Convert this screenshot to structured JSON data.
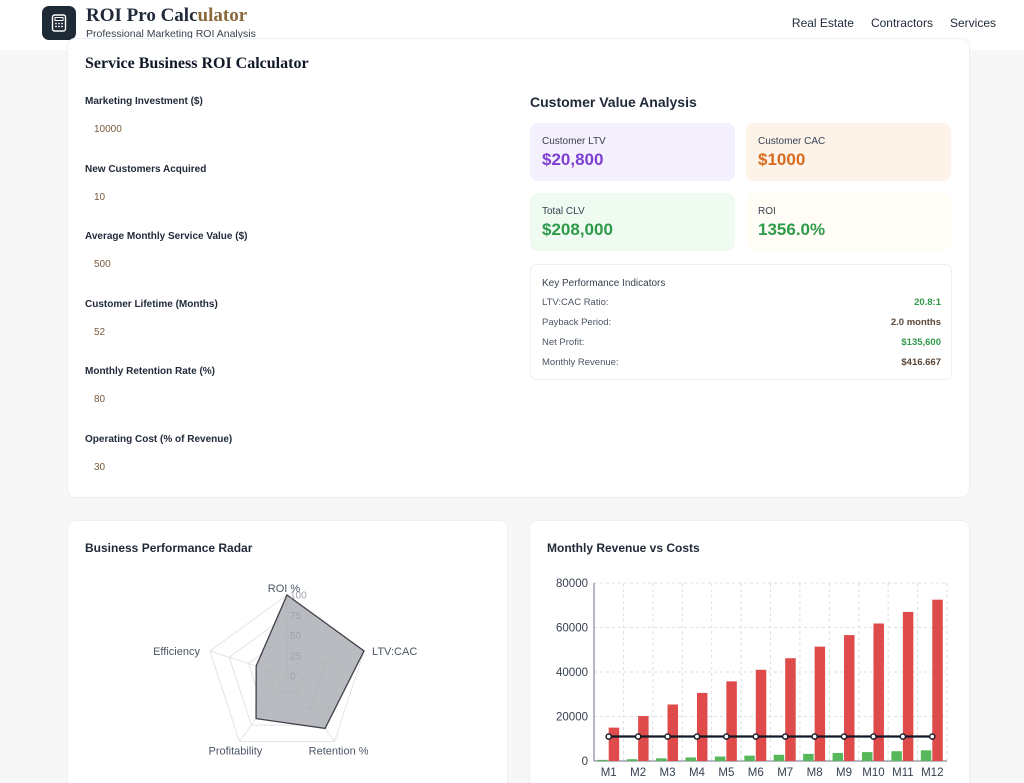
{
  "header": {
    "brand_title_main": "ROI Pro Calc",
    "brand_title_accent": "ulator",
    "brand_subtitle": "Professional Marketing ROI Analysis",
    "logo_icon": "calculator-icon",
    "nav": [
      "Real Estate",
      "Contractors",
      "Services"
    ]
  },
  "calculator": {
    "title": "Service Business ROI Calculator",
    "fields": [
      {
        "label": "Marketing Investment ($)",
        "value": "10000"
      },
      {
        "label": "New Customers Acquired",
        "value": "10"
      },
      {
        "label": "Average Monthly Service Value ($)",
        "value": "500"
      },
      {
        "label": "Customer Lifetime (Months)",
        "value": "52"
      },
      {
        "label": "Monthly Retention Rate (%)",
        "value": "80"
      },
      {
        "label": "Operating Cost (% of Revenue)",
        "value": "30"
      }
    ]
  },
  "analysis": {
    "title": "Customer Value Analysis",
    "metrics": [
      {
        "label": "Customer LTV",
        "value": "$20,800",
        "bg": "#f5f0fd",
        "color": "#7e3fd1"
      },
      {
        "label": "Customer CAC",
        "value": "$1000",
        "bg": "#fdf3e9",
        "color": "#d66a1e"
      },
      {
        "label": "Total CLV",
        "value": "$208,000",
        "bg": "#effaf1",
        "color": "#2f9a4a"
      },
      {
        "label": "ROI",
        "value": "1356.0%",
        "bg": "#fffdf5",
        "color": "#2f9a4a"
      }
    ],
    "kpi": {
      "title": "Key Performance Indicators",
      "rows": [
        {
          "label": "LTV:CAC Ratio:",
          "value": "20.8:1",
          "color": "#2f9a4a"
        },
        {
          "label": "Payback Period:",
          "value": "2.0 months",
          "color": "#5b4636"
        },
        {
          "label": "Net Profit:",
          "value": "$135,600",
          "color": "#2f9a4a"
        },
        {
          "label": "Monthly Revenue:",
          "value": "$416.667",
          "color": "#5b4636"
        }
      ]
    }
  },
  "radar": {
    "title": "Business Performance Radar",
    "axes": [
      "ROI %",
      "LTV:CAC",
      "Retention %",
      "Profitability",
      "Efficiency"
    ],
    "values": [
      100,
      100,
      80,
      65,
      40
    ],
    "ticks": [
      "0",
      "25",
      "50",
      "75",
      "100"
    ],
    "fill": "#a8aab0",
    "stroke": "#3f4148"
  },
  "chart_data": {
    "type": "bar",
    "title": "Monthly Revenue vs Costs",
    "categories": [
      "M1",
      "M2",
      "M3",
      "M4",
      "M5",
      "M6",
      "M7",
      "M8",
      "M9",
      "M10",
      "M11",
      "M12"
    ],
    "ylim": [
      0,
      80000
    ],
    "y_ticks": [
      "0",
      "20000",
      "40000",
      "60000",
      "80000"
    ],
    "grid": true,
    "series": [
      {
        "type": "bar",
        "color": "#56b85a",
        "values": [
          500,
          800,
          1200,
          1600,
          2000,
          2400,
          2800,
          3200,
          3600,
          4000,
          4400,
          4800
        ]
      },
      {
        "type": "bar",
        "color": "#df4b4b",
        "values": [
          15000,
          20200,
          25400,
          30600,
          35800,
          41000,
          46200,
          51400,
          56600,
          61800,
          67000,
          72500
        ]
      },
      {
        "type": "line",
        "color": "#111827",
        "values": [
          11000,
          11000,
          11000,
          11000,
          11000,
          11000,
          11000,
          11000,
          11000,
          11000,
          11000,
          11000
        ]
      }
    ]
  }
}
